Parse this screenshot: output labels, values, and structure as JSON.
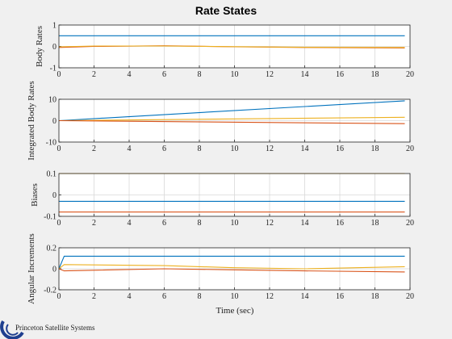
{
  "figure": {
    "title": "Rate States",
    "xlabel": "Time (sec)",
    "logo_text": "Princeton Satellite Systems"
  },
  "colors": {
    "blue": "#0072bd",
    "orange": "#d95319",
    "yellow": "#edb120",
    "background": "#f0f0f0",
    "axes": "#ffffff",
    "grid": "#d9d9d9"
  },
  "chart_data": [
    {
      "type": "line",
      "ylabel": "Body Rates",
      "xlim": [
        0,
        20
      ],
      "ylim": [
        -1,
        1
      ],
      "xticks": [
        "0",
        "2",
        "4",
        "6",
        "8",
        "10",
        "12",
        "14",
        "16",
        "18",
        "20"
      ],
      "yticks": [
        "-1",
        "0",
        "1"
      ],
      "grid": "on",
      "series": [
        {
          "color": "#0072bd",
          "x": [
            0,
            19.7
          ],
          "y": [
            0.5,
            0.5
          ]
        },
        {
          "color": "#d95319",
          "x": [
            0,
            2,
            6,
            10,
            14,
            19.7
          ],
          "y": [
            -0.05,
            0.0,
            0.03,
            -0.02,
            -0.05,
            -0.07
          ]
        },
        {
          "color": "#edb120",
          "x": [
            0,
            2,
            6,
            10,
            14,
            19.7
          ],
          "y": [
            -0.02,
            0.02,
            0.02,
            -0.01,
            -0.04,
            -0.05
          ]
        }
      ]
    },
    {
      "type": "line",
      "ylabel": "Integrated Body Rates",
      "xlim": [
        0,
        20
      ],
      "ylim": [
        -10,
        10
      ],
      "xticks": [
        "0",
        "2",
        "4",
        "6",
        "8",
        "10",
        "12",
        "14",
        "16",
        "18",
        "20"
      ],
      "yticks": [
        "-10",
        "0",
        "10"
      ],
      "grid": "on",
      "series": [
        {
          "color": "#0072bd",
          "x": [
            0,
            19.7
          ],
          "y": [
            0,
            9.3
          ]
        },
        {
          "color": "#edb120",
          "x": [
            0,
            19.7
          ],
          "y": [
            0,
            1.6
          ]
        },
        {
          "color": "#d95319",
          "x": [
            0,
            19.7
          ],
          "y": [
            0,
            -1.4
          ]
        }
      ]
    },
    {
      "type": "line",
      "ylabel": "Biases",
      "xlim": [
        0,
        20
      ],
      "ylim": [
        -0.1,
        0.1
      ],
      "xticks": [
        "0",
        "2",
        "4",
        "6",
        "8",
        "10",
        "12",
        "14",
        "16",
        "18",
        "20"
      ],
      "yticks": [
        "-0.1",
        "0",
        "0.1"
      ],
      "grid": "on",
      "series": [
        {
          "color": "#edb120",
          "x": [
            0,
            19.7
          ],
          "y": [
            0.1,
            0.1
          ]
        },
        {
          "color": "#0072bd",
          "x": [
            0,
            19.7
          ],
          "y": [
            -0.03,
            -0.03
          ]
        },
        {
          "color": "#d95319",
          "x": [
            0,
            19.7
          ],
          "y": [
            -0.08,
            -0.08
          ]
        }
      ]
    },
    {
      "type": "line",
      "ylabel": "Angular Increments",
      "xlim": [
        0,
        20
      ],
      "ylim": [
        -0.2,
        0.2
      ],
      "xticks": [
        "0",
        "2",
        "4",
        "6",
        "8",
        "10",
        "12",
        "14",
        "16",
        "18",
        "20"
      ],
      "yticks": [
        "-0.2",
        "0",
        "0.2"
      ],
      "grid": "on",
      "series": [
        {
          "color": "#0072bd",
          "x": [
            0,
            0.3,
            19.7
          ],
          "y": [
            0,
            0.12,
            0.12
          ]
        },
        {
          "color": "#edb120",
          "x": [
            0,
            0.3,
            6,
            10,
            14,
            19.7
          ],
          "y": [
            0,
            0.04,
            0.03,
            0.01,
            0.0,
            0.02
          ]
        },
        {
          "color": "#d95319",
          "x": [
            0,
            0.3,
            6,
            10,
            14,
            19.7
          ],
          "y": [
            0,
            -0.02,
            0.0,
            -0.01,
            -0.02,
            -0.03
          ]
        }
      ]
    }
  ]
}
